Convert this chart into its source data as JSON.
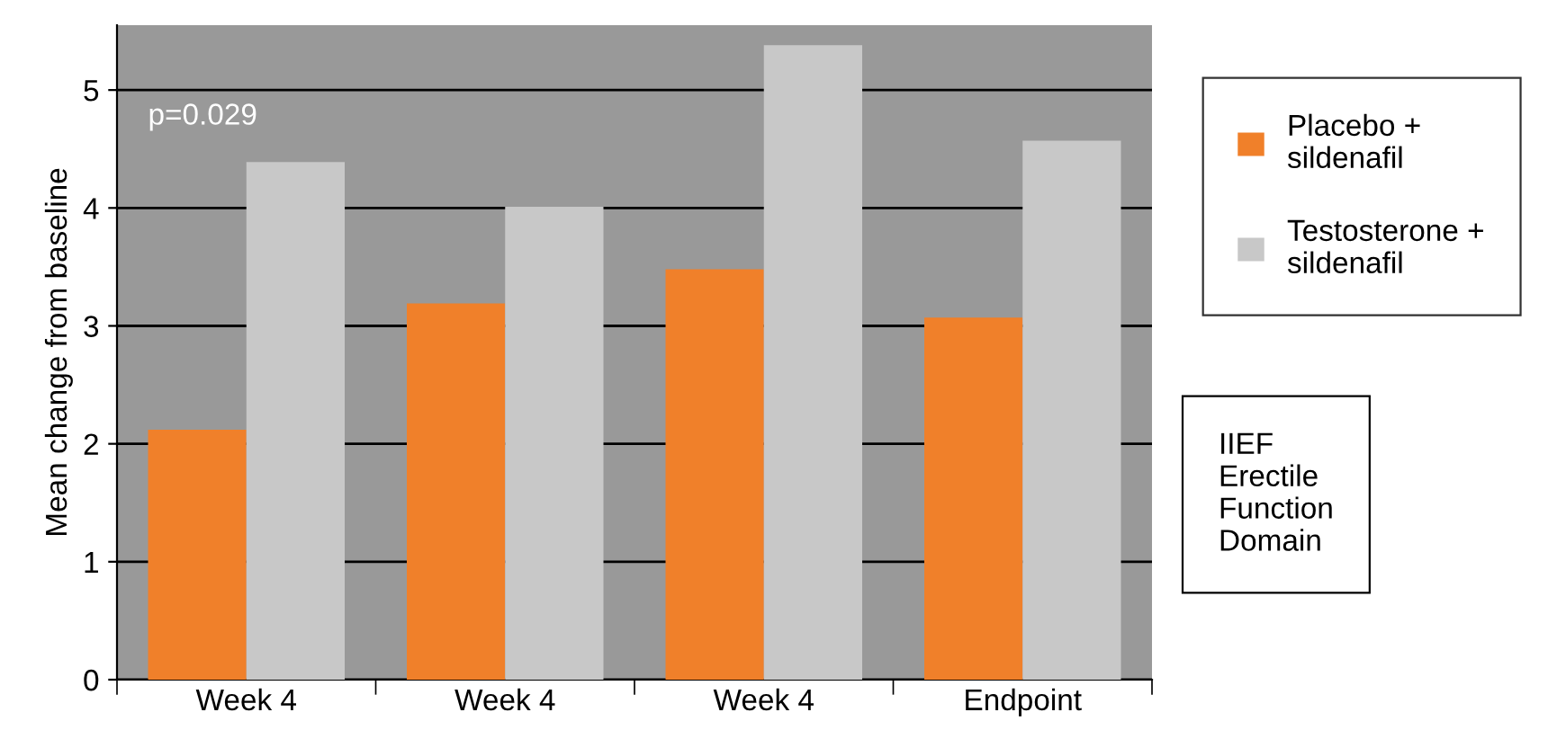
{
  "chart_data": {
    "type": "bar",
    "ylabel": "Mean change from baseline",
    "categories": [
      "Week 4",
      "Week 4",
      "Week 4",
      "Endpoint"
    ],
    "series": [
      {
        "name": "Placebo +\nsildenafil",
        "color": "#f0802a",
        "values": [
          2.12,
          3.19,
          3.48,
          3.07
        ]
      },
      {
        "name": "Testosterone +\nsildenafil",
        "color": "#c8c8c8",
        "values": [
          4.39,
          4.01,
          5.38,
          4.57
        ]
      }
    ],
    "ylim": [
      0,
      5.55
    ],
    "yticks": [
      0,
      1,
      2,
      3,
      4,
      5
    ],
    "grid": "y",
    "legend": "right",
    "annotations": [
      "p=0.029",
      "IIEF\nErectile\nFunction\nDomain"
    ]
  }
}
